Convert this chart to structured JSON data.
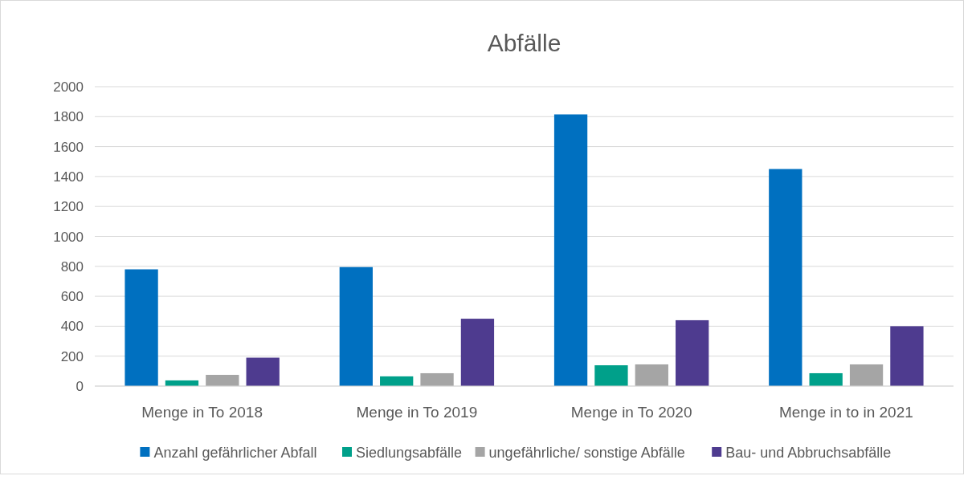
{
  "chart_data": {
    "type": "bar",
    "title": "Abfälle",
    "categories": [
      "Menge in To 2018",
      "Menge in To 2019",
      "Menge in To 2020",
      "Menge in to in 2021"
    ],
    "series": [
      {
        "name": "Anzahl gefährlicher Abfall",
        "color": "#0070c0",
        "values": [
          780,
          795,
          1815,
          1450
        ]
      },
      {
        "name": "Siedlungsabfälle",
        "color": "#00a08a",
        "values": [
          38,
          65,
          139,
          86
        ]
      },
      {
        "name": "ungefährliche/ sonstige Abfälle",
        "color": "#a5a5a5",
        "values": [
          75,
          86,
          145,
          145
        ]
      },
      {
        "name": "Bau- und Abbruchsabfälle",
        "color": "#4e3b8f",
        "values": [
          190,
          450,
          440,
          400
        ]
      }
    ],
    "ylim": [
      0,
      2000
    ],
    "yticks": [
      0,
      200,
      400,
      600,
      800,
      1000,
      1200,
      1400,
      1600,
      1800,
      2000
    ],
    "grid": "y",
    "legend": "bottom"
  }
}
